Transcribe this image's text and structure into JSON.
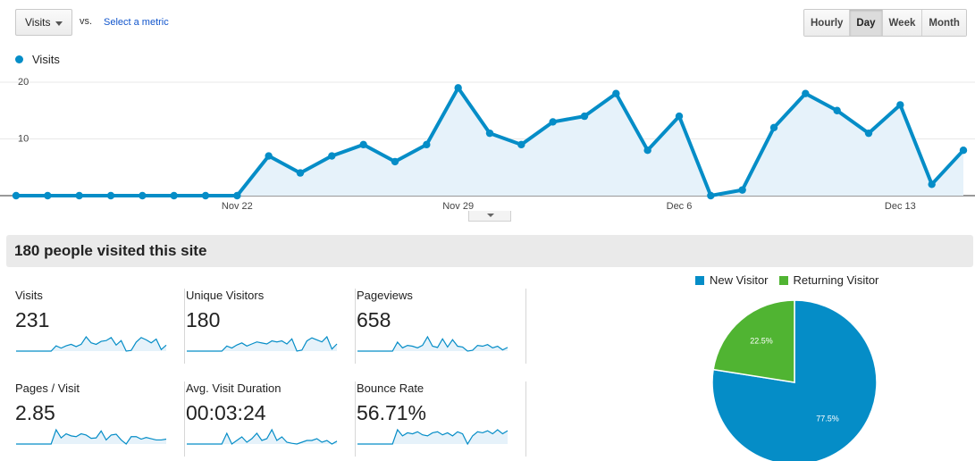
{
  "toolbar": {
    "metric_label": "Visits",
    "vs_label": "vs.",
    "select_metric_label": "Select a metric",
    "granularity": [
      "Hourly",
      "Day",
      "Week",
      "Month"
    ],
    "active_granularity": "Day"
  },
  "colors": {
    "primary": "#058dc7",
    "secondary": "#50b432",
    "area_fill": "#e6f2fa"
  },
  "chart_data": [
    {
      "type": "line",
      "series": [
        {
          "name": "Visits",
          "values": [
            0,
            0,
            0,
            0,
            0,
            0,
            0,
            0,
            7,
            4,
            7,
            9,
            6,
            9,
            19,
            11,
            9,
            13,
            14,
            18,
            8,
            14,
            0,
            1,
            12,
            18,
            15,
            11,
            16,
            2,
            8
          ]
        }
      ],
      "x": [
        "Nov 15",
        "Nov 16",
        "Nov 17",
        "Nov 18",
        "Nov 19",
        "Nov 20",
        "Nov 21",
        "Nov 22",
        "Nov 23",
        "Nov 24",
        "Nov 25",
        "Nov 26",
        "Nov 27",
        "Nov 28",
        "Nov 29",
        "Nov 30",
        "Dec 1",
        "Dec 2",
        "Dec 3",
        "Dec 4",
        "Dec 5",
        "Dec 6",
        "Dec 7",
        "Dec 8",
        "Dec 9",
        "Dec 10",
        "Dec 11",
        "Dec 12",
        "Dec 13",
        "Dec 14",
        "Dec 15"
      ],
      "xticks": [
        "Nov 22",
        "Nov 29",
        "Dec 6",
        "Dec 13"
      ],
      "yticks": [
        10,
        20
      ],
      "ylim": [
        0,
        20
      ],
      "grid": true,
      "legend": "top-left"
    },
    {
      "type": "pie",
      "labels": [
        "New Visitor",
        "Returning Visitor"
      ],
      "values": [
        77.5,
        22.5
      ],
      "value_labels": [
        "77.5%",
        "22.5%"
      ],
      "legend": "top"
    }
  ],
  "summary": {
    "title": "180 people visited this site"
  },
  "metrics": [
    {
      "label": "Visits",
      "value": "231",
      "spark": [
        0,
        0,
        0,
        0,
        0,
        0,
        0,
        0,
        7,
        4,
        7,
        9,
        6,
        9,
        19,
        11,
        9,
        13,
        14,
        18,
        8,
        14,
        0,
        1,
        12,
        18,
        15,
        11,
        16,
        2,
        8
      ]
    },
    {
      "label": "Unique Visitors",
      "value": "180",
      "spark": [
        0,
        0,
        0,
        0,
        0,
        0,
        0,
        0,
        5,
        3,
        6,
        8,
        5,
        7,
        9,
        8,
        7,
        10,
        9,
        10,
        7,
        12,
        0,
        1,
        10,
        13,
        11,
        9,
        14,
        2,
        7
      ]
    },
    {
      "label": "Pageviews",
      "value": "658",
      "spark": [
        0,
        0,
        0,
        0,
        0,
        0,
        0,
        0,
        22,
        8,
        14,
        12,
        8,
        14,
        35,
        12,
        9,
        30,
        10,
        28,
        12,
        10,
        0,
        2,
        14,
        12,
        16,
        8,
        12,
        3,
        9
      ]
    },
    {
      "label": "Pages / Visit",
      "value": "2.85",
      "spark": [
        0,
        0,
        0,
        0,
        0,
        0,
        0,
        0,
        3.5,
        1.5,
        2.5,
        2,
        1.8,
        2.5,
        2.2,
        1.4,
        1.5,
        3.2,
        1,
        2.2,
        2.4,
        1,
        0,
        1.8,
        1.8,
        1.2,
        1.6,
        1.3,
        1,
        1,
        1.2
      ]
    },
    {
      "label": "Avg. Visit Duration",
      "value": "00:03:24",
      "spark": [
        0,
        0,
        0,
        0,
        0,
        0,
        0,
        0,
        3,
        0,
        1,
        2,
        0.5,
        1.5,
        3,
        1,
        1.5,
        4,
        1,
        2,
        0.5,
        0.2,
        0,
        0.5,
        1,
        1,
        1.5,
        0.5,
        1,
        0,
        0.8
      ]
    },
    {
      "label": "Bounce Rate",
      "value": "56.71%",
      "spark": [
        0,
        0,
        0,
        0,
        0,
        0,
        0,
        0,
        70,
        40,
        55,
        50,
        60,
        45,
        40,
        55,
        60,
        45,
        55,
        40,
        60,
        50,
        0,
        40,
        60,
        55,
        65,
        50,
        70,
        50,
        65
      ]
    }
  ]
}
